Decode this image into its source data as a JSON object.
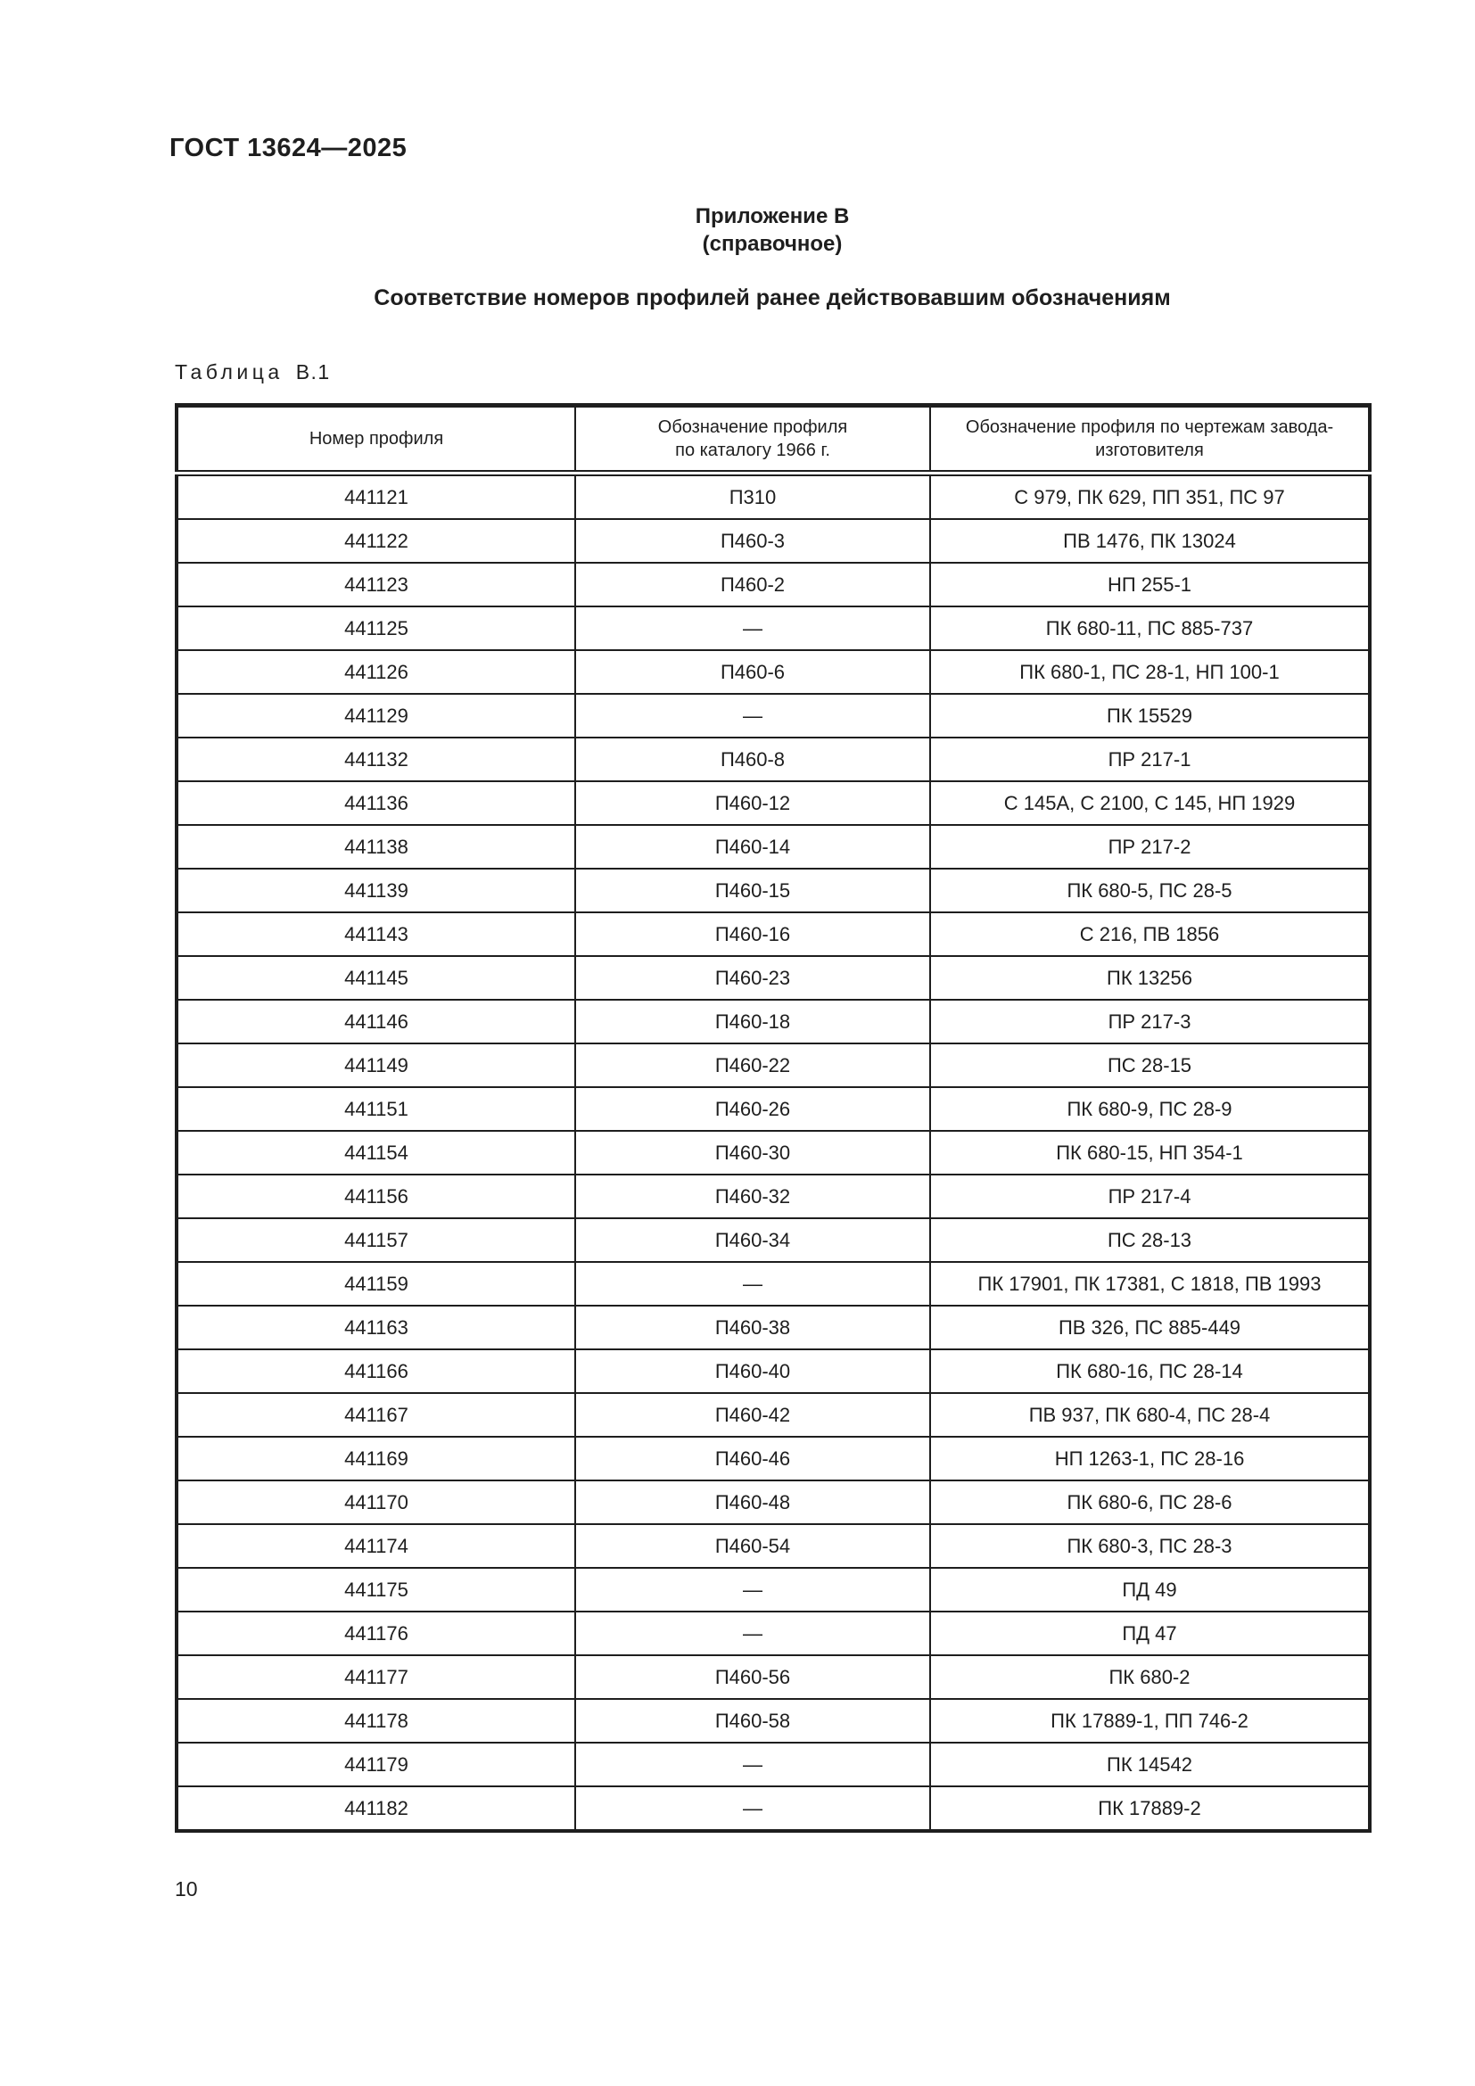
{
  "page": {
    "doc_number": "ГОСТ 13624—2025",
    "appendix_label": "Приложение В",
    "appendix_kind": "(справочное)",
    "section_title": "Соответствие номеров профилей ранее действовавшим обозначениям",
    "table_label_word": "Таблица",
    "table_label_number": "В.1",
    "page_number": "10"
  },
  "table": {
    "columns": [
      "Номер профиля",
      "Обозначение профиля\nпо каталогу 1966 г.",
      "Обозначение профиля по чертежам завода-\nизготовителя"
    ],
    "rows": [
      [
        "441121",
        "П310",
        "С 979, ПК 629, ПП 351, ПС 97"
      ],
      [
        "441122",
        "П460-3",
        "ПВ 1476, ПК 13024"
      ],
      [
        "441123",
        "П460-2",
        "НП 255-1"
      ],
      [
        "441125",
        "—",
        "ПК 680-11, ПС 885-737"
      ],
      [
        "441126",
        "П460-6",
        "ПК 680-1, ПС 28-1, НП 100-1"
      ],
      [
        "441129",
        "—",
        "ПК 15529"
      ],
      [
        "441132",
        "П460-8",
        "ПР 217-1"
      ],
      [
        "441136",
        "П460-12",
        "С 145А, С 2100, С 145, НП 1929"
      ],
      [
        "441138",
        "П460-14",
        "ПР 217-2"
      ],
      [
        "441139",
        "П460-15",
        "ПК 680-5, ПС 28-5"
      ],
      [
        "441143",
        "П460-16",
        "С 216, ПВ 1856"
      ],
      [
        "441145",
        "П460-23",
        "ПК 13256"
      ],
      [
        "441146",
        "П460-18",
        "ПР 217-3"
      ],
      [
        "441149",
        "П460-22",
        "ПС 28-15"
      ],
      [
        "441151",
        "П460-26",
        "ПК 680-9, ПС 28-9"
      ],
      [
        "441154",
        "П460-30",
        "ПК 680-15, НП 354-1"
      ],
      [
        "441156",
        "П460-32",
        "ПР 217-4"
      ],
      [
        "441157",
        "П460-34",
        "ПС 28-13"
      ],
      [
        "441159",
        "—",
        "ПК 17901, ПК 17381, С 1818, ПВ 1993"
      ],
      [
        "441163",
        "П460-38",
        "ПВ 326, ПС 885-449"
      ],
      [
        "441166",
        "П460-40",
        "ПК 680-16, ПС 28-14"
      ],
      [
        "441167",
        "П460-42",
        "ПВ 937, ПК 680-4, ПС 28-4"
      ],
      [
        "441169",
        "П460-46",
        "НП 1263-1, ПС 28-16"
      ],
      [
        "441170",
        "П460-48",
        "ПК 680-6, ПС 28-6"
      ],
      [
        "441174",
        "П460-54",
        "ПК 680-3, ПС 28-3"
      ],
      [
        "441175",
        "—",
        "ПД 49"
      ],
      [
        "441176",
        "—",
        "ПД 47"
      ],
      [
        "441177",
        "П460-56",
        "ПК 680-2"
      ],
      [
        "441178",
        "П460-58",
        "ПК 17889-1, ПП 746-2"
      ],
      [
        "441179",
        "—",
        "ПК 14542"
      ],
      [
        "441182",
        "—",
        "ПК 17889-2"
      ]
    ]
  },
  "colors": {
    "ink": "#1e1e1e",
    "paper": "#ffffff"
  }
}
